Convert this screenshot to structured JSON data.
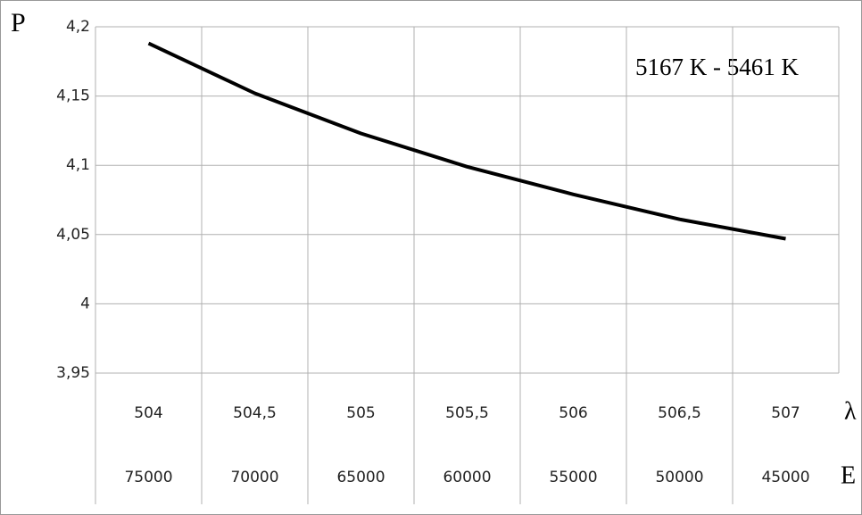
{
  "chart_data": {
    "type": "line",
    "y_label": "P",
    "x_label": "λ",
    "x2_label": "E",
    "annotation": "5167 K - 5461 K",
    "categories": [
      "504",
      "504,5",
      "505",
      "505,5",
      "506",
      "506,5",
      "507"
    ],
    "categories2": [
      "75000",
      "70000",
      "65000",
      "60000",
      "55000",
      "50000",
      "45000"
    ],
    "values": [
      4.188,
      4.152,
      4.123,
      4.099,
      4.079,
      4.061,
      4.047
    ],
    "color": "#000000",
    "ylim": [
      3.95,
      4.2
    ],
    "yticks": [
      {
        "value": 3.95,
        "label": "3,95"
      },
      4,
      {
        "value": 4.05,
        "label": "4,05"
      },
      {
        "value": 4.1,
        "label": "4,1"
      },
      {
        "value": 4.15,
        "label": "4,15"
      },
      {
        "value": 4.2,
        "label": "4,2"
      }
    ],
    "grid": true
  }
}
